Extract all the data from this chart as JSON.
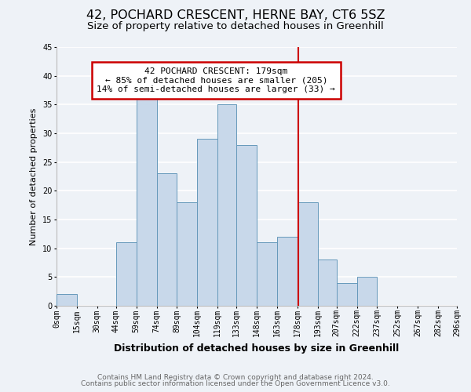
{
  "title": "42, POCHARD CRESCENT, HERNE BAY, CT6 5SZ",
  "subtitle": "Size of property relative to detached houses in Greenhill",
  "xlabel": "Distribution of detached houses by size in Greenhill",
  "ylabel": "Number of detached properties",
  "footer_line1": "Contains HM Land Registry data © Crown copyright and database right 2024.",
  "footer_line2": "Contains public sector information licensed under the Open Government Licence v3.0.",
  "bar_left_edges": [
    0,
    15,
    30,
    44,
    59,
    74,
    89,
    104,
    119,
    133,
    148,
    163,
    178,
    193,
    207,
    222,
    237,
    252,
    267,
    282
  ],
  "bar_widths": [
    15,
    15,
    14,
    15,
    15,
    15,
    15,
    15,
    14,
    15,
    15,
    15,
    15,
    14,
    15,
    15,
    15,
    15,
    15,
    14
  ],
  "bar_heights": [
    2,
    0,
    0,
    11,
    36,
    23,
    18,
    29,
    35,
    28,
    11,
    12,
    18,
    8,
    4,
    5,
    0,
    0,
    0,
    0
  ],
  "bar_color": "#c8d8ea",
  "bar_edgecolor": "#6699bb",
  "vline_x": 179,
  "vline_color": "#cc0000",
  "annotation_text": "42 POCHARD CRESCENT: 179sqm\n← 85% of detached houses are smaller (205)\n14% of semi-detached houses are larger (33) →",
  "annotation_box_color": "#ffffff",
  "annotation_border_color": "#cc0000",
  "x_tick_labels": [
    "0sqm",
    "15sqm",
    "30sqm",
    "44sqm",
    "59sqm",
    "74sqm",
    "89sqm",
    "104sqm",
    "119sqm",
    "133sqm",
    "148sqm",
    "163sqm",
    "178sqm",
    "193sqm",
    "207sqm",
    "222sqm",
    "237sqm",
    "252sqm",
    "267sqm",
    "282sqm",
    "296sqm"
  ],
  "x_tick_positions": [
    0,
    15,
    30,
    44,
    59,
    74,
    89,
    104,
    119,
    133,
    148,
    163,
    178,
    193,
    207,
    222,
    237,
    252,
    267,
    282,
    296
  ],
  "ylim": [
    0,
    45
  ],
  "yticks": [
    0,
    5,
    10,
    15,
    20,
    25,
    30,
    35,
    40,
    45
  ],
  "xlim": [
    0,
    296
  ],
  "background_color": "#eef2f7",
  "grid_color": "#ffffff",
  "title_fontsize": 11.5,
  "subtitle_fontsize": 9.5,
  "ylabel_fontsize": 8,
  "xlabel_fontsize": 9,
  "tick_fontsize": 7,
  "footer_fontsize": 6.5,
  "annotation_fontsize": 8
}
